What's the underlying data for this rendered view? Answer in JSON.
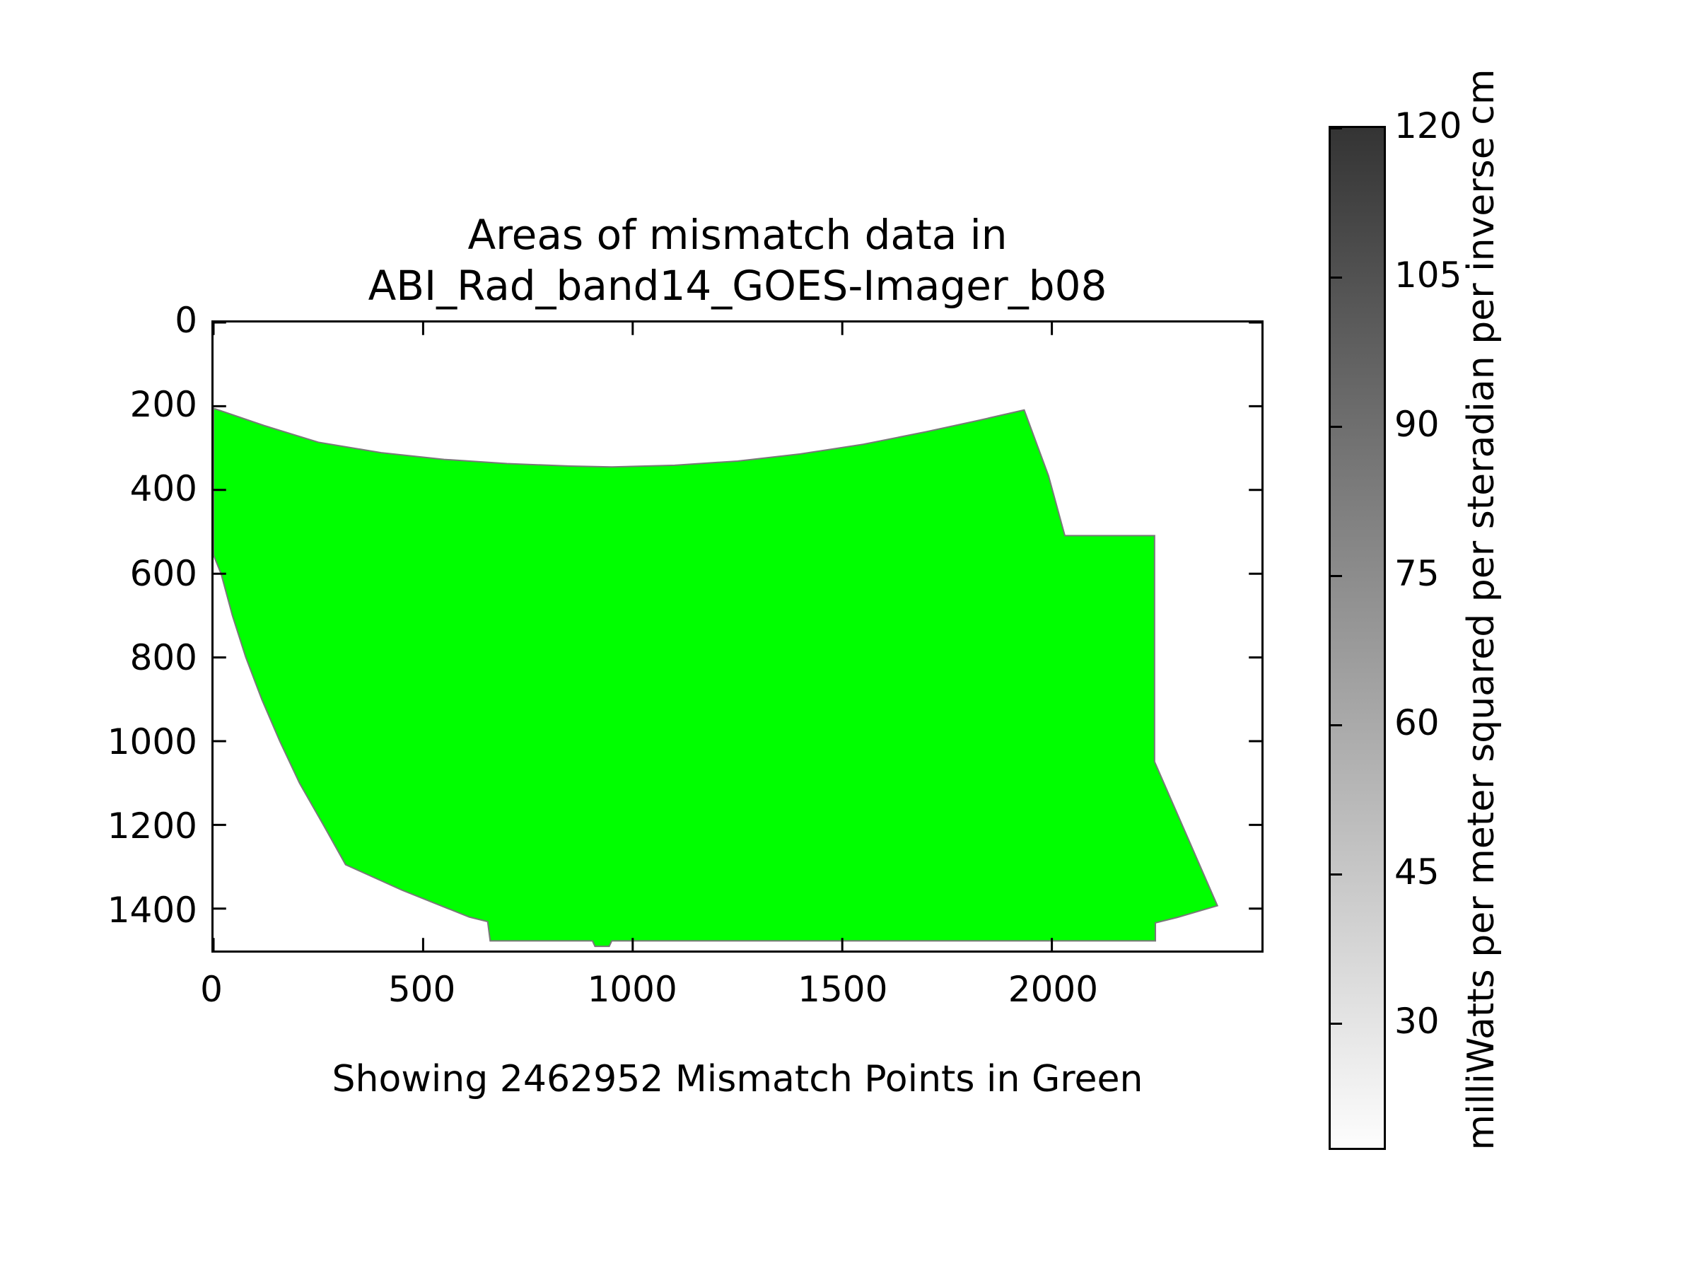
{
  "chart_data": {
    "type": "area",
    "title": "Areas of mismatch data in\nABI_Rad_band14_GOES-Imager_b08",
    "caption": "Showing 2462952 Mismatch Points in Green",
    "xlabel": "",
    "ylabel": "",
    "xlim": [
      0,
      2500
    ],
    "ylim": [
      1500,
      0
    ],
    "y_axis_inverted": true,
    "grid": false,
    "x_ticks": [
      0,
      500,
      1000,
      1500,
      2000
    ],
    "y_ticks": [
      0,
      200,
      400,
      600,
      800,
      1000,
      1200,
      1400
    ],
    "background_color": "#ffffff",
    "frame_color": "#000000",
    "region": {
      "label": "mismatch area (green)",
      "fill_color": "#00ff00",
      "edge_color": "#787878",
      "points": [
        [
          0,
          205
        ],
        [
          120,
          246
        ],
        [
          250,
          286
        ],
        [
          400,
          311
        ],
        [
          550,
          327
        ],
        [
          700,
          337
        ],
        [
          850,
          343
        ],
        [
          950,
          345
        ],
        [
          1100,
          341
        ],
        [
          1250,
          331
        ],
        [
          1400,
          314
        ],
        [
          1550,
          291
        ],
        [
          1700,
          261
        ],
        [
          1820,
          235
        ],
        [
          1934,
          209
        ],
        [
          1992,
          366
        ],
        [
          2031,
          509
        ],
        [
          2245,
          509
        ],
        [
          2245,
          1049
        ],
        [
          2395,
          1393
        ],
        [
          2299,
          1421
        ],
        [
          2247,
          1434
        ],
        [
          2247,
          1477
        ],
        [
          950,
          1477
        ],
        [
          944,
          1490
        ],
        [
          910,
          1490
        ],
        [
          904,
          1477
        ],
        [
          660,
          1477
        ],
        [
          654,
          1431
        ],
        [
          610,
          1420
        ],
        [
          450,
          1356
        ],
        [
          315,
          1295
        ],
        [
          262,
          1200
        ],
        [
          205,
          1100
        ],
        [
          158,
          1000
        ],
        [
          115,
          900
        ],
        [
          77,
          800
        ],
        [
          45,
          700
        ],
        [
          18,
          600
        ],
        [
          0,
          556
        ]
      ]
    },
    "colorbar": {
      "label": "milliWatts per meter squared per steradian per inverse cm",
      "ticks": [
        120,
        105,
        90,
        75,
        60,
        45,
        30
      ],
      "vmax": 120,
      "vmin": 17.5,
      "top_color": "#343434",
      "bottom_color": "#fdfdfd",
      "border_color": "#000000"
    }
  }
}
